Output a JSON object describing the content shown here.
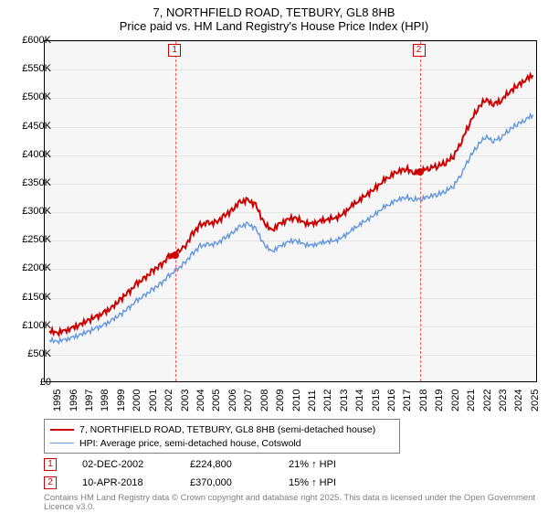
{
  "title": {
    "line1": "7, NORTHFIELD ROAD, TETBURY, GL8 8HB",
    "line2": "Price paid vs. HM Land Registry's House Price Index (HPI)"
  },
  "chart": {
    "type": "line",
    "background_color": "#f6f6f6",
    "grid_color": "#e4e4e4",
    "axis_color": "#000000",
    "font_size_axis": 11,
    "x": {
      "min": 1994.7,
      "max": 2025.7,
      "ticks": [
        1995,
        1996,
        1997,
        1998,
        1999,
        2000,
        2001,
        2002,
        2003,
        2004,
        2005,
        2006,
        2007,
        2008,
        2009,
        2010,
        2011,
        2012,
        2013,
        2014,
        2015,
        2016,
        2017,
        2018,
        2019,
        2020,
        2021,
        2022,
        2023,
        2024,
        2025
      ]
    },
    "y": {
      "min": 0,
      "max": 600000,
      "tick_step": 50000,
      "labels": [
        "£0",
        "£50K",
        "£100K",
        "£150K",
        "£200K",
        "£250K",
        "£300K",
        "£350K",
        "£400K",
        "£450K",
        "£500K",
        "£550K",
        "£600K"
      ]
    },
    "series": [
      {
        "name": "7, NORTHFIELD ROAD, TETBURY, GL8 8HB (semi-detached house)",
        "color": "#cc0000",
        "line_width": 2,
        "values": [
          [
            1995,
            88
          ],
          [
            1995.5,
            85
          ],
          [
            1996,
            90
          ],
          [
            1996.5,
            95
          ],
          [
            1997,
            100
          ],
          [
            1997.5,
            108
          ],
          [
            1998,
            115
          ],
          [
            1998.5,
            122
          ],
          [
            1999,
            130
          ],
          [
            1999.5,
            145
          ],
          [
            2000,
            158
          ],
          [
            2000.5,
            172
          ],
          [
            2001,
            180
          ],
          [
            2001.5,
            195
          ],
          [
            2002,
            205
          ],
          [
            2002.5,
            218
          ],
          [
            2002.92,
            225
          ],
          [
            2003.5,
            235
          ],
          [
            2004,
            260
          ],
          [
            2004.5,
            275
          ],
          [
            2005,
            278
          ],
          [
            2005.5,
            280
          ],
          [
            2006,
            292
          ],
          [
            2006.5,
            300
          ],
          [
            2007,
            315
          ],
          [
            2007.5,
            320
          ],
          [
            2008,
            312
          ],
          [
            2008.5,
            280
          ],
          [
            2009,
            265
          ],
          [
            2009.5,
            278
          ],
          [
            2010,
            285
          ],
          [
            2010.5,
            288
          ],
          [
            2011,
            280
          ],
          [
            2011.5,
            278
          ],
          [
            2012,
            282
          ],
          [
            2012.5,
            285
          ],
          [
            2013,
            288
          ],
          [
            2013.5,
            295
          ],
          [
            2014,
            308
          ],
          [
            2014.5,
            318
          ],
          [
            2015,
            330
          ],
          [
            2015.5,
            340
          ],
          [
            2016,
            352
          ],
          [
            2016.5,
            362
          ],
          [
            2017,
            372
          ],
          [
            2017.5,
            375
          ],
          [
            2018,
            368
          ],
          [
            2018.27,
            370
          ],
          [
            2018.5,
            372
          ],
          [
            2019,
            378
          ],
          [
            2019.5,
            380
          ],
          [
            2020,
            385
          ],
          [
            2020.5,
            398
          ],
          [
            2021,
            425
          ],
          [
            2021.5,
            455
          ],
          [
            2022,
            480
          ],
          [
            2022.5,
            498
          ],
          [
            2023,
            490
          ],
          [
            2023.5,
            495
          ],
          [
            2024,
            510
          ],
          [
            2024.5,
            522
          ],
          [
            2025,
            532
          ],
          [
            2025.5,
            540
          ]
        ]
      },
      {
        "name": "HPI: Average price, semi-detached house, Cotswold",
        "color": "#6699dd",
        "line_width": 1.5,
        "values": [
          [
            1995,
            72
          ],
          [
            1995.5,
            70
          ],
          [
            1996,
            74
          ],
          [
            1996.5,
            78
          ],
          [
            1997,
            82
          ],
          [
            1997.5,
            88
          ],
          [
            1998,
            95
          ],
          [
            1998.5,
            100
          ],
          [
            1999,
            108
          ],
          [
            1999.5,
            118
          ],
          [
            2000,
            130
          ],
          [
            2000.5,
            142
          ],
          [
            2001,
            150
          ],
          [
            2001.5,
            162
          ],
          [
            2002,
            172
          ],
          [
            2002.5,
            185
          ],
          [
            2003,
            195
          ],
          [
            2003.5,
            208
          ],
          [
            2004,
            225
          ],
          [
            2004.5,
            238
          ],
          [
            2005,
            240
          ],
          [
            2005.5,
            242
          ],
          [
            2006,
            252
          ],
          [
            2006.5,
            260
          ],
          [
            2007,
            272
          ],
          [
            2007.5,
            278
          ],
          [
            2008,
            270
          ],
          [
            2008.5,
            242
          ],
          [
            2009,
            228
          ],
          [
            2009.5,
            238
          ],
          [
            2010,
            245
          ],
          [
            2010.5,
            248
          ],
          [
            2011,
            242
          ],
          [
            2011.5,
            240
          ],
          [
            2012,
            243
          ],
          [
            2012.5,
            246
          ],
          [
            2013,
            248
          ],
          [
            2013.5,
            255
          ],
          [
            2014,
            265
          ],
          [
            2014.5,
            275
          ],
          [
            2015,
            285
          ],
          [
            2015.5,
            294
          ],
          [
            2016,
            305
          ],
          [
            2016.5,
            313
          ],
          [
            2017,
            322
          ],
          [
            2017.5,
            325
          ],
          [
            2018,
            320
          ],
          [
            2018.5,
            322
          ],
          [
            2019,
            328
          ],
          [
            2019.5,
            330
          ],
          [
            2020,
            335
          ],
          [
            2020.5,
            345
          ],
          [
            2021,
            368
          ],
          [
            2021.5,
            395
          ],
          [
            2022,
            415
          ],
          [
            2022.5,
            432
          ],
          [
            2023,
            425
          ],
          [
            2023.5,
            430
          ],
          [
            2024,
            443
          ],
          [
            2024.5,
            454
          ],
          [
            2025,
            462
          ],
          [
            2025.5,
            470
          ]
        ]
      }
    ],
    "markers": [
      {
        "id": "1",
        "x": 2002.92,
        "y": 224.8
      },
      {
        "id": "2",
        "x": 2018.27,
        "y": 370
      }
    ]
  },
  "legend": {
    "items": [
      {
        "color": "#cc0000",
        "label": "7, NORTHFIELD ROAD, TETBURY, GL8 8HB (semi-detached house)"
      },
      {
        "color": "#6699dd",
        "label": "HPI: Average price, semi-detached house, Cotswold"
      }
    ]
  },
  "annotations": [
    {
      "num": "1",
      "date": "02-DEC-2002",
      "price": "£224,800",
      "pct": "21% ↑ HPI"
    },
    {
      "num": "2",
      "date": "10-APR-2018",
      "price": "£370,000",
      "pct": "15% ↑ HPI"
    }
  ],
  "copyright": "Contains HM Land Registry data © Crown copyright and database right 2025. This data is licensed under the Open Government Licence v3.0."
}
